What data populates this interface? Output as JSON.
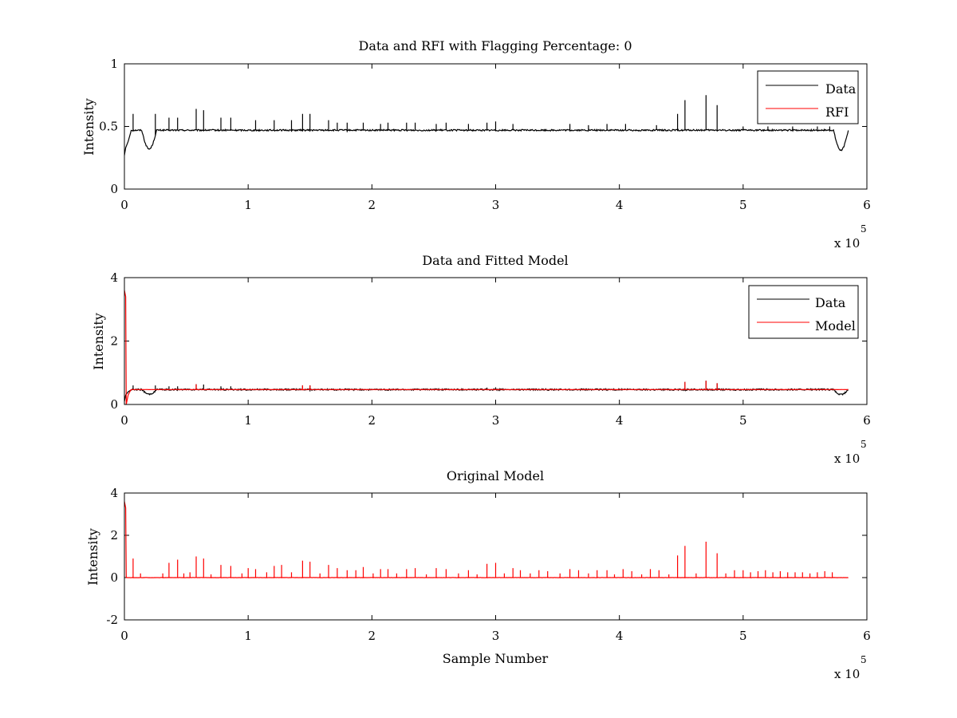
{
  "chart_data": [
    {
      "type": "line",
      "title": "Data and RFI with Flagging Percentage: 0",
      "xlabel": "",
      "ylabel": "Intensity",
      "xlim": [
        0,
        6
      ],
      "ylim": [
        0,
        1
      ],
      "xticks": [
        "0",
        "1",
        "2",
        "3",
        "4",
        "5",
        "6"
      ],
      "yticks": [
        "0",
        "0.5",
        "1"
      ],
      "x_multiplier": {
        "base": "x 10",
        "exponent": "5"
      },
      "legend": {
        "placement": "top-right",
        "entries": [
          {
            "label": "Data",
            "color": "#000000"
          },
          {
            "label": "RFI",
            "color": "#ff0000"
          }
        ]
      },
      "series": [
        {
          "name": "Data",
          "color": "#000000",
          "baseline": 0.47,
          "x_end": 5.85,
          "dips": [
            {
              "x": 0.2,
              "depth": 0.15,
              "width": 0.06
            },
            {
              "x": 5.79,
              "depth": 0.16,
              "width": 0.06
            }
          ],
          "start": [
            {
              "x": 0.0,
              "y": 0.27
            },
            {
              "x": 0.01,
              "y": 0.33
            },
            {
              "x": 0.03,
              "y": 0.38
            },
            {
              "x": 0.05,
              "y": 0.45
            }
          ],
          "spikes": [
            {
              "x": 0.07,
              "y": 0.6
            },
            {
              "x": 0.25,
              "y": 0.6
            },
            {
              "x": 0.36,
              "y": 0.57
            },
            {
              "x": 0.43,
              "y": 0.57
            },
            {
              "x": 0.58,
              "y": 0.64
            },
            {
              "x": 0.64,
              "y": 0.63
            },
            {
              "x": 0.78,
              "y": 0.57
            },
            {
              "x": 0.86,
              "y": 0.57
            },
            {
              "x": 1.06,
              "y": 0.55
            },
            {
              "x": 1.21,
              "y": 0.55
            },
            {
              "x": 1.35,
              "y": 0.55
            },
            {
              "x": 1.44,
              "y": 0.6
            },
            {
              "x": 1.5,
              "y": 0.6
            },
            {
              "x": 1.65,
              "y": 0.55
            },
            {
              "x": 1.72,
              "y": 0.53
            },
            {
              "x": 1.8,
              "y": 0.53
            },
            {
              "x": 1.93,
              "y": 0.53
            },
            {
              "x": 2.07,
              "y": 0.52
            },
            {
              "x": 2.13,
              "y": 0.53
            },
            {
              "x": 2.28,
              "y": 0.53
            },
            {
              "x": 2.35,
              "y": 0.53
            },
            {
              "x": 2.52,
              "y": 0.52
            },
            {
              "x": 2.6,
              "y": 0.53
            },
            {
              "x": 2.78,
              "y": 0.52
            },
            {
              "x": 2.93,
              "y": 0.53
            },
            {
              "x": 3.0,
              "y": 0.54
            },
            {
              "x": 3.14,
              "y": 0.52
            },
            {
              "x": 3.6,
              "y": 0.52
            },
            {
              "x": 3.75,
              "y": 0.51
            },
            {
              "x": 3.9,
              "y": 0.52
            },
            {
              "x": 4.05,
              "y": 0.52
            },
            {
              "x": 4.3,
              "y": 0.51
            },
            {
              "x": 4.47,
              "y": 0.6
            },
            {
              "x": 4.53,
              "y": 0.71
            },
            {
              "x": 4.7,
              "y": 0.75
            },
            {
              "x": 4.79,
              "y": 0.67
            },
            {
              "x": 5.0,
              "y": 0.5
            },
            {
              "x": 5.2,
              "y": 0.5
            },
            {
              "x": 5.4,
              "y": 0.5
            },
            {
              "x": 5.6,
              "y": 0.5
            },
            {
              "x": 5.7,
              "y": 0.5
            }
          ]
        },
        {
          "name": "RFI",
          "color": "#ff0000",
          "values": []
        }
      ]
    },
    {
      "type": "line",
      "title": "Data and Fitted Model",
      "xlabel": "",
      "ylabel": "Intensity",
      "xlim": [
        0,
        6
      ],
      "ylim": [
        0,
        4
      ],
      "xticks": [
        "0",
        "1",
        "2",
        "3",
        "4",
        "5",
        "6"
      ],
      "yticks": [
        "0",
        "2",
        "4"
      ],
      "x_multiplier": {
        "base": "x 10",
        "exponent": "5"
      },
      "legend": {
        "placement": "top-right",
        "entries": [
          {
            "label": "Data",
            "color": "#000000"
          },
          {
            "label": "Model",
            "color": "#ff0000"
          }
        ]
      },
      "series": [
        {
          "name": "Data",
          "color": "#000000",
          "baseline": 0.47,
          "x_end": 5.85,
          "dips": [
            {
              "x": 0.2,
              "depth": 0.15,
              "width": 0.06
            },
            {
              "x": 5.79,
              "depth": 0.16,
              "width": 0.06
            }
          ],
          "start": [
            {
              "x": 0.0,
              "y": 0.1
            },
            {
              "x": 0.01,
              "y": 0.3
            },
            {
              "x": 0.03,
              "y": 0.4
            },
            {
              "x": 0.05,
              "y": 0.45
            }
          ],
          "spikes": [
            {
              "x": 0.07,
              "y": 0.6
            },
            {
              "x": 0.25,
              "y": 0.6
            },
            {
              "x": 0.36,
              "y": 0.57
            },
            {
              "x": 0.43,
              "y": 0.57
            },
            {
              "x": 0.58,
              "y": 0.64
            },
            {
              "x": 0.64,
              "y": 0.63
            },
            {
              "x": 0.78,
              "y": 0.57
            },
            {
              "x": 0.86,
              "y": 0.57
            },
            {
              "x": 1.44,
              "y": 0.6
            },
            {
              "x": 1.5,
              "y": 0.6
            },
            {
              "x": 2.93,
              "y": 0.53
            },
            {
              "x": 3.0,
              "y": 0.54
            },
            {
              "x": 4.53,
              "y": 0.71
            },
            {
              "x": 4.7,
              "y": 0.75
            },
            {
              "x": 4.79,
              "y": 0.67
            }
          ]
        },
        {
          "name": "Model",
          "color": "#ff0000",
          "baseline": 0.47,
          "x_end": 5.85,
          "start": [
            {
              "x": 0.0,
              "y": 3.6
            },
            {
              "x": 0.01,
              "y": 3.4
            },
            {
              "x": 0.015,
              "y": 0.0
            },
            {
              "x": 0.03,
              "y": 0.3
            },
            {
              "x": 0.05,
              "y": 0.45
            }
          ],
          "spikes": [
            {
              "x": 0.58,
              "y": 0.64
            },
            {
              "x": 1.44,
              "y": 0.6
            },
            {
              "x": 1.5,
              "y": 0.6
            },
            {
              "x": 4.53,
              "y": 0.71
            },
            {
              "x": 4.7,
              "y": 0.75
            },
            {
              "x": 4.79,
              "y": 0.67
            }
          ]
        }
      ]
    },
    {
      "type": "line",
      "title": "Original Model",
      "xlabel": "Sample Number",
      "ylabel": "Intensity",
      "xlim": [
        0,
        6
      ],
      "ylim": [
        -2,
        4
      ],
      "xticks": [
        "0",
        "1",
        "2",
        "3",
        "4",
        "5",
        "6"
      ],
      "yticks": [
        "-2",
        "0",
        "2",
        "4"
      ],
      "x_multiplier": {
        "base": "x 10",
        "exponent": "5"
      },
      "legend": null,
      "series": [
        {
          "name": "Model",
          "color": "#ff0000",
          "baseline": 0.0,
          "x_end": 5.85,
          "start": [
            {
              "x": 0.0,
              "y": 3.6
            },
            {
              "x": 0.01,
              "y": 3.3
            },
            {
              "x": 0.015,
              "y": 0.0
            }
          ],
          "spikes": [
            {
              "x": 0.07,
              "y": 0.9
            },
            {
              "x": 0.13,
              "y": 0.2
            },
            {
              "x": 0.31,
              "y": 0.2
            },
            {
              "x": 0.36,
              "y": 0.7
            },
            {
              "x": 0.43,
              "y": 0.85
            },
            {
              "x": 0.48,
              "y": 0.2
            },
            {
              "x": 0.53,
              "y": 0.25
            },
            {
              "x": 0.58,
              "y": 1.0
            },
            {
              "x": 0.64,
              "y": 0.9
            },
            {
              "x": 0.7,
              "y": 0.15
            },
            {
              "x": 0.78,
              "y": 0.6
            },
            {
              "x": 0.86,
              "y": 0.55
            },
            {
              "x": 0.95,
              "y": 0.2
            },
            {
              "x": 1.0,
              "y": 0.45
            },
            {
              "x": 1.06,
              "y": 0.4
            },
            {
              "x": 1.15,
              "y": 0.25
            },
            {
              "x": 1.21,
              "y": 0.55
            },
            {
              "x": 1.27,
              "y": 0.6
            },
            {
              "x": 1.35,
              "y": 0.25
            },
            {
              "x": 1.44,
              "y": 0.8
            },
            {
              "x": 1.5,
              "y": 0.75
            },
            {
              "x": 1.58,
              "y": 0.2
            },
            {
              "x": 1.65,
              "y": 0.6
            },
            {
              "x": 1.72,
              "y": 0.45
            },
            {
              "x": 1.8,
              "y": 0.35
            },
            {
              "x": 1.87,
              "y": 0.35
            },
            {
              "x": 1.93,
              "y": 0.5
            },
            {
              "x": 2.01,
              "y": 0.2
            },
            {
              "x": 2.07,
              "y": 0.4
            },
            {
              "x": 2.13,
              "y": 0.4
            },
            {
              "x": 2.2,
              "y": 0.2
            },
            {
              "x": 2.28,
              "y": 0.4
            },
            {
              "x": 2.35,
              "y": 0.45
            },
            {
              "x": 2.44,
              "y": 0.15
            },
            {
              "x": 2.52,
              "y": 0.45
            },
            {
              "x": 2.6,
              "y": 0.4
            },
            {
              "x": 2.7,
              "y": 0.2
            },
            {
              "x": 2.78,
              "y": 0.35
            },
            {
              "x": 2.85,
              "y": 0.15
            },
            {
              "x": 2.93,
              "y": 0.65
            },
            {
              "x": 3.0,
              "y": 0.7
            },
            {
              "x": 3.07,
              "y": 0.2
            },
            {
              "x": 3.14,
              "y": 0.45
            },
            {
              "x": 3.2,
              "y": 0.35
            },
            {
              "x": 3.28,
              "y": 0.2
            },
            {
              "x": 3.35,
              "y": 0.35
            },
            {
              "x": 3.42,
              "y": 0.3
            },
            {
              "x": 3.52,
              "y": 0.2
            },
            {
              "x": 3.6,
              "y": 0.4
            },
            {
              "x": 3.67,
              "y": 0.35
            },
            {
              "x": 3.75,
              "y": 0.2
            },
            {
              "x": 3.82,
              "y": 0.35
            },
            {
              "x": 3.9,
              "y": 0.35
            },
            {
              "x": 3.96,
              "y": 0.15
            },
            {
              "x": 4.03,
              "y": 0.4
            },
            {
              "x": 4.1,
              "y": 0.3
            },
            {
              "x": 4.18,
              "y": 0.15
            },
            {
              "x": 4.25,
              "y": 0.4
            },
            {
              "x": 4.32,
              "y": 0.35
            },
            {
              "x": 4.4,
              "y": 0.15
            },
            {
              "x": 4.47,
              "y": 1.05
            },
            {
              "x": 4.53,
              "y": 1.5
            },
            {
              "x": 4.62,
              "y": 0.2
            },
            {
              "x": 4.7,
              "y": 1.7
            },
            {
              "x": 4.79,
              "y": 1.15
            },
            {
              "x": 4.86,
              "y": 0.2
            },
            {
              "x": 4.93,
              "y": 0.35
            },
            {
              "x": 5.0,
              "y": 0.35
            },
            {
              "x": 5.06,
              "y": 0.25
            },
            {
              "x": 5.12,
              "y": 0.3
            },
            {
              "x": 5.18,
              "y": 0.35
            },
            {
              "x": 5.24,
              "y": 0.25
            },
            {
              "x": 5.3,
              "y": 0.3
            },
            {
              "x": 5.36,
              "y": 0.25
            },
            {
              "x": 5.42,
              "y": 0.25
            },
            {
              "x": 5.48,
              "y": 0.25
            },
            {
              "x": 5.54,
              "y": 0.2
            },
            {
              "x": 5.6,
              "y": 0.25
            },
            {
              "x": 5.66,
              "y": 0.3
            },
            {
              "x": 5.72,
              "y": 0.25
            }
          ]
        }
      ]
    }
  ]
}
